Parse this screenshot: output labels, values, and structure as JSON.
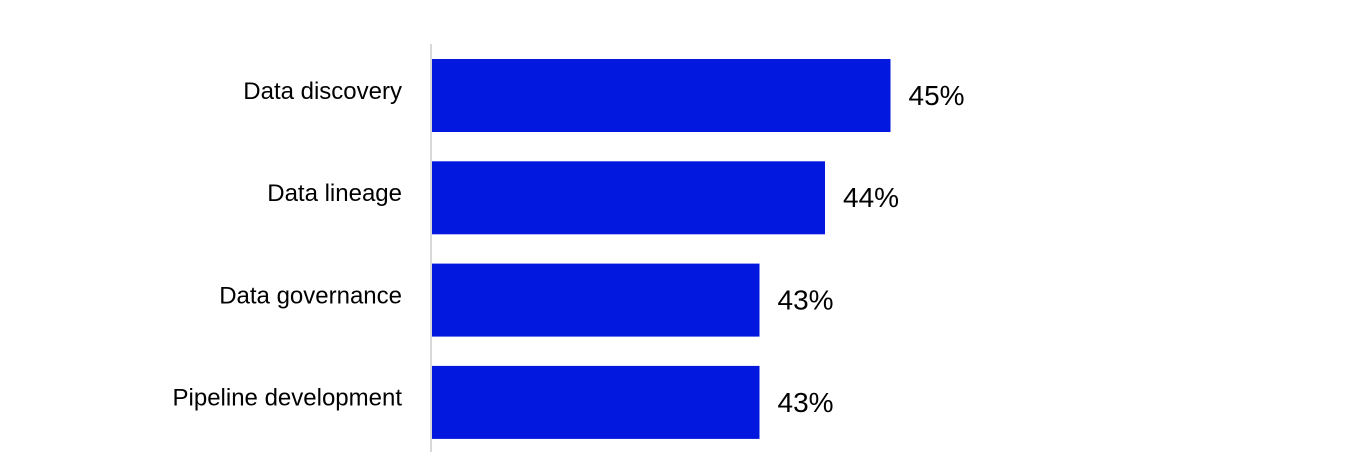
{
  "chart_data": {
    "type": "hbar",
    "categories": [
      "Data discovery",
      "Data lineage",
      "Data governance",
      "Pipeline development"
    ],
    "values": [
      45,
      44,
      43,
      43
    ],
    "value_labels": [
      "45%",
      "44%",
      "43%",
      "43%"
    ],
    "color": "#0318de",
    "xlim": [
      38,
      50
    ]
  }
}
